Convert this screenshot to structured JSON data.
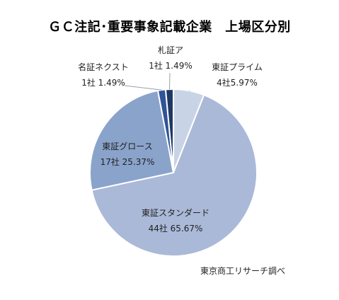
{
  "chart_data": {
    "type": "pie",
    "title": "ＧＣ注記･重要事象記載企業　上場区分別",
    "slices": [
      {
        "name": "東証プライム",
        "count_label": "4社",
        "percent_label": "5.97%",
        "value": 5.97,
        "color": "#c8d4e6"
      },
      {
        "name": "東証スタンダード",
        "count_label": "44社",
        "percent_label": "65.67%",
        "value": 65.67,
        "color": "#aab9d8"
      },
      {
        "name": "東証グロース",
        "count_label": "17社",
        "percent_label": "25.37%",
        "value": 25.37,
        "color": "#8aa3cb"
      },
      {
        "name": "名証ネクスト",
        "count_label": "1社",
        "percent_label": "1.49%",
        "value": 1.49,
        "color": "#2f5597"
      },
      {
        "name": "札証ア",
        "count_label": "1社",
        "percent_label": "1.49%",
        "value": 1.49,
        "color": "#1f3864"
      }
    ],
    "source": "東京商工リサーチ調べ"
  }
}
